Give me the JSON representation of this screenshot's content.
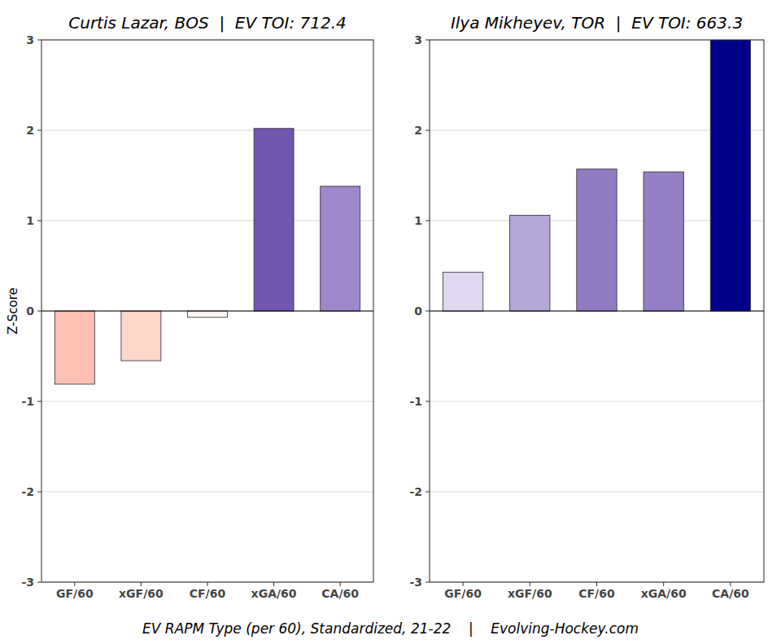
{
  "chart_data": [
    {
      "type": "bar",
      "title": "Curtis Lazar, BOS  |  EV TOI: 712.4",
      "ylabel": "Z-Score",
      "categories": [
        "GF/60",
        "xGF/60",
        "CF/60",
        "xGA/60",
        "CA/60"
      ],
      "values": [
        -0.81,
        -0.55,
        -0.07,
        2.02,
        1.38
      ],
      "colors": [
        "#fdc0b2",
        "#fdd6cc",
        "#fdf6f3",
        "#7356b0",
        "#9e88c9"
      ],
      "ylim": [
        -3,
        3
      ],
      "yticks": [
        -3,
        -2,
        -1,
        0,
        1,
        2,
        3
      ],
      "grid": true
    },
    {
      "type": "bar",
      "title": "Ilya Mikheyev, TOR  |  EV TOI: 663.3",
      "categories": [
        "GF/60",
        "xGF/60",
        "CF/60",
        "xGA/60",
        "CA/60"
      ],
      "values": [
        0.43,
        1.06,
        1.57,
        1.54,
        3.0
      ],
      "colors": [
        "#e0d8ee",
        "#b5a6d8",
        "#917bc3",
        "#947fc4",
        "#00008b"
      ],
      "ylim": [
        -3,
        3
      ],
      "yticks": [
        -3,
        -2,
        -1,
        0,
        1,
        2,
        3
      ],
      "grid": true
    }
  ],
  "figure": {
    "xlabel": "EV RAPM Type (per 60), Standardized, 21-22    |    Evolving-Hockey.com"
  }
}
